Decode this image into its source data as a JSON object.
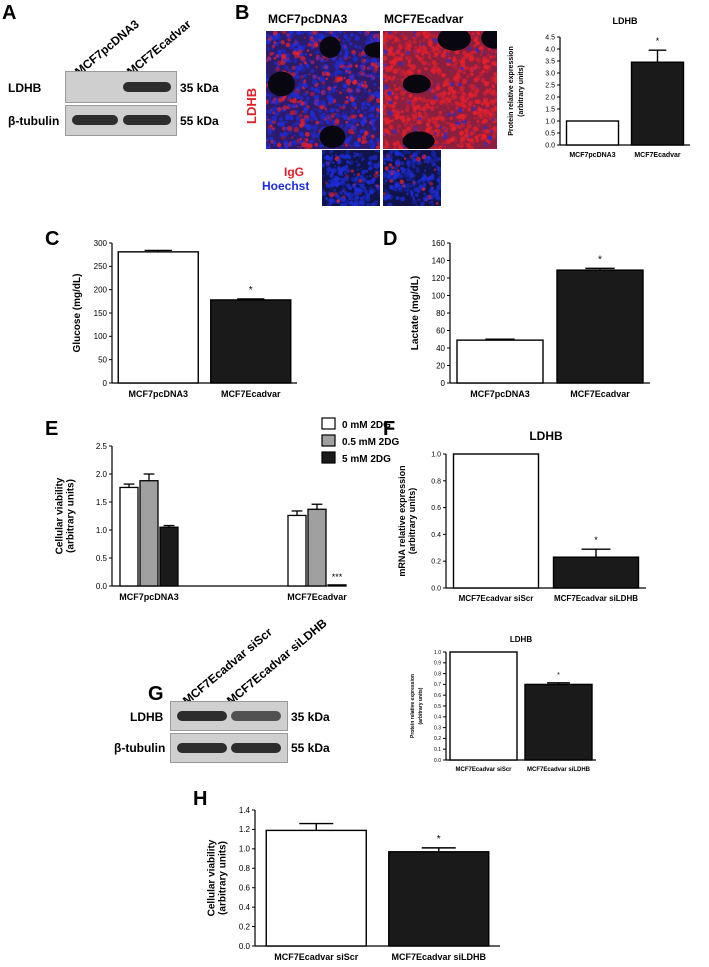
{
  "panel_letters": {
    "a": "A",
    "b": "B",
    "c": "C",
    "d": "D",
    "e": "E",
    "f": "F",
    "g": "G",
    "h": "H"
  },
  "blot_a": {
    "lanes": [
      "MCF7pcDNA3",
      "MCF7Ecadvar"
    ],
    "row_labels": [
      "LDHB",
      "β-tubulin"
    ],
    "kda_labels": [
      "35 kDa",
      "55 kDa"
    ],
    "band_intensity": {
      "LDHB": [
        0.0,
        1.0
      ],
      "β-tubulin": [
        1.0,
        1.0
      ]
    }
  },
  "micrograph_b": {
    "headers": [
      "MCF7pcDNA3",
      "MCF7Ecadvar"
    ],
    "stain_label": "LDHB",
    "control_labels": [
      "IgG",
      "Hoechst"
    ],
    "colors": {
      "stain": "#e8202a",
      "nuclei": "#1c2ee0"
    }
  },
  "blot_g": {
    "lanes": [
      "MCF7Ecadvar siScr",
      "MCF7Ecadvar siLDHB"
    ],
    "row_labels": [
      "LDHB",
      "β-tubulin"
    ],
    "kda_labels": [
      "35 kDa",
      "55 kDa"
    ],
    "band_intensity": {
      "LDHB": [
        1.0,
        0.8
      ],
      "β-tubulin": [
        1.0,
        1.0
      ]
    }
  },
  "chart_data": [
    {
      "id": "b",
      "type": "bar",
      "title": "LDHB",
      "categories": [
        "MCF7pcDNA3",
        "MCF7Ecadvar"
      ],
      "values": [
        1.0,
        3.45
      ],
      "errors": [
        0,
        0.5
      ],
      "ylabel": "Protein relative expression\n(arbitrary units)",
      "ylim": [
        0,
        4.5
      ],
      "yticks": [
        0.0,
        0.5,
        1.0,
        1.5,
        2.0,
        2.5,
        3.0,
        3.5,
        4.0,
        4.5
      ],
      "fills": [
        "#ffffff",
        "#1a1a1a"
      ],
      "annotations": [
        "",
        "*"
      ]
    },
    {
      "id": "c",
      "type": "bar",
      "title": "",
      "categories": [
        "MCF7pcDNA3",
        "MCF7Ecadvar"
      ],
      "values": [
        281,
        178
      ],
      "errors": [
        3,
        2
      ],
      "ylabel": "Glucose (mg/dL)",
      "ylim": [
        0,
        300
      ],
      "yticks": [
        0,
        50,
        100,
        150,
        200,
        250,
        300
      ],
      "fills": [
        "#ffffff",
        "#1a1a1a"
      ],
      "annotations": [
        "",
        "*"
      ]
    },
    {
      "id": "d",
      "type": "bar",
      "title": "",
      "categories": [
        "MCF7pcDNA3",
        "MCF7Ecadvar"
      ],
      "values": [
        49,
        129
      ],
      "errors": [
        1,
        2
      ],
      "ylabel": "Lactate (mg/dL)",
      "ylim": [
        0,
        160
      ],
      "yticks": [
        0,
        20,
        40,
        60,
        80,
        100,
        120,
        140,
        160
      ],
      "fills": [
        "#ffffff",
        "#1a1a1a"
      ],
      "annotations": [
        "",
        "*"
      ]
    },
    {
      "id": "e",
      "type": "bar",
      "title": "",
      "categories": [
        "MCF7pcDNA3",
        "MCF7Ecadvar"
      ],
      "series": [
        {
          "name": "0 mM 2DG",
          "values": [
            1.76,
            1.26
          ],
          "errors": [
            0.06,
            0.08
          ],
          "fill": "#ffffff"
        },
        {
          "name": "0.5 mM 2DG",
          "values": [
            1.88,
            1.37
          ],
          "errors": [
            0.12,
            0.09
          ],
          "fill": "#a0a0a0"
        },
        {
          "name": "5 mM 2DG",
          "values": [
            1.05,
            0.02
          ],
          "errors": [
            0.03,
            0.0
          ],
          "fill": "#1a1a1a"
        }
      ],
      "ylabel": "Cellular viability\n(arbitrary units)",
      "ylim": [
        0,
        2.5
      ],
      "yticks": [
        0.0,
        0.5,
        1.0,
        1.5,
        2.0,
        2.5
      ],
      "annotation": "***",
      "legend": "top-right"
    },
    {
      "id": "f",
      "type": "bar",
      "title": "LDHB",
      "categories": [
        "MCF7Ecadvar siScr",
        "MCF7Ecadvar siLDHB"
      ],
      "values": [
        1.0,
        0.23
      ],
      "errors": [
        0,
        0.06
      ],
      "ylabel": "mRNA relative expression\n(arbitrary units)",
      "ylim": [
        0,
        1.0
      ],
      "yticks": [
        0.0,
        0.2,
        0.4,
        0.6,
        0.8,
        1.0
      ],
      "fills": [
        "#ffffff",
        "#1a1a1a"
      ],
      "annotations": [
        "",
        "*"
      ]
    },
    {
      "id": "g",
      "type": "bar",
      "title": "LDHB",
      "categories": [
        "MCF7Ecadvar siScr",
        "MCF7Ecadvar siLDHB"
      ],
      "values": [
        1.0,
        0.7
      ],
      "errors": [
        0,
        0.015
      ],
      "ylabel": "Protein relative expression\n(arbitrary units)",
      "ylim": [
        0,
        1.0
      ],
      "yticks": [
        0.0,
        0.1,
        0.2,
        0.3,
        0.4,
        0.5,
        0.6,
        0.7,
        0.8,
        0.9,
        1.0
      ],
      "fills": [
        "#ffffff",
        "#1a1a1a"
      ],
      "annotations": [
        "",
        "*"
      ]
    },
    {
      "id": "h",
      "type": "bar",
      "title": "",
      "categories": [
        "MCF7Ecadvar siScr",
        "MCF7Ecadvar siLDHB"
      ],
      "values": [
        1.19,
        0.97
      ],
      "errors": [
        0.07,
        0.04
      ],
      "ylabel": "Cellular viability\n(arbitrary units)",
      "ylim": [
        0,
        1.4
      ],
      "yticks": [
        0.0,
        0.2,
        0.4,
        0.6,
        0.8,
        1.0,
        1.2,
        1.4
      ],
      "fills": [
        "#ffffff",
        "#1a1a1a"
      ],
      "annotations": [
        "",
        "*"
      ]
    }
  ]
}
